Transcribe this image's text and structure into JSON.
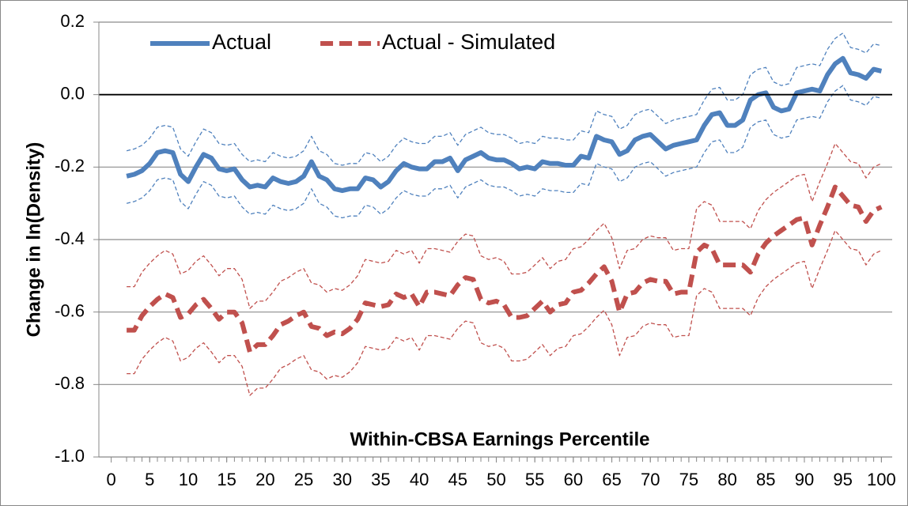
{
  "chart_data": {
    "type": "line",
    "y_label": "Change in ln(Density)",
    "x_label": "Within-CBSA Earnings Percentile",
    "xlim": [
      -1.6,
      101.4
    ],
    "xticks": [
      0,
      5,
      10,
      15,
      20,
      25,
      30,
      35,
      40,
      45,
      50,
      55,
      60,
      65,
      70,
      75,
      80,
      85,
      90,
      95,
      100
    ],
    "ylim": [
      -1.0,
      0.2
    ],
    "yticks": [
      {
        "value": -1.0,
        "label": "-1.0"
      },
      -0.8,
      -0.6,
      -0.4,
      -0.2,
      {
        "value": 0.0,
        "label": "0.0"
      },
      0.2
    ],
    "grid": true,
    "zero_line": true,
    "legend": "upper left",
    "x": [
      2,
      3,
      4,
      5,
      6,
      7,
      8,
      9,
      10,
      11,
      12,
      13,
      14,
      15,
      16,
      17,
      18,
      19,
      20,
      21,
      22,
      23,
      24,
      25,
      26,
      27,
      28,
      29,
      30,
      31,
      32,
      33,
      34,
      35,
      36,
      37,
      38,
      39,
      40,
      41,
      42,
      43,
      44,
      45,
      46,
      47,
      48,
      49,
      50,
      51,
      52,
      53,
      54,
      55,
      56,
      57,
      58,
      59,
      60,
      61,
      62,
      63,
      64,
      65,
      66,
      67,
      68,
      69,
      70,
      71,
      72,
      73,
      74,
      75,
      76,
      77,
      78,
      79,
      80,
      81,
      82,
      83,
      84,
      85,
      86,
      87,
      88,
      89,
      90,
      91,
      92,
      93,
      94,
      95,
      96,
      97,
      98,
      99,
      100
    ],
    "series": [
      {
        "color": "#4f81bd",
        "dashed": true,
        "values": [
          -0.155,
          -0.15,
          -0.14,
          -0.12,
          -0.09,
          -0.085,
          -0.09,
          -0.15,
          -0.17,
          -0.13,
          -0.095,
          -0.105,
          -0.135,
          -0.14,
          -0.135,
          -0.165,
          -0.185,
          -0.18,
          -0.185,
          -0.16,
          -0.17,
          -0.175,
          -0.17,
          -0.155,
          -0.115,
          -0.155,
          -0.165,
          -0.19,
          -0.195,
          -0.19,
          -0.19,
          -0.16,
          -0.165,
          -0.185,
          -0.17,
          -0.14,
          -0.12,
          -0.13,
          -0.135,
          -0.135,
          -0.115,
          -0.115,
          -0.105,
          -0.14,
          -0.11,
          -0.1,
          -0.09,
          -0.105,
          -0.11,
          -0.11,
          -0.12,
          -0.135,
          -0.13,
          -0.135,
          -0.115,
          -0.12,
          -0.12,
          -0.125,
          -0.125,
          -0.1,
          -0.105,
          -0.045,
          -0.055,
          -0.06,
          -0.095,
          -0.085,
          -0.055,
          -0.045,
          -0.04,
          -0.06,
          -0.08,
          -0.07,
          -0.065,
          -0.06,
          -0.055,
          -0.015,
          0.015,
          0.02,
          -0.015,
          -0.015,
          0.0,
          0.055,
          0.07,
          0.075,
          0.035,
          0.025,
          0.03,
          0.075,
          0.08,
          0.085,
          0.08,
          0.125,
          0.155,
          0.17,
          0.13,
          0.125,
          0.115,
          0.14,
          0.135
        ]
      },
      {
        "color": "#4f81bd",
        "dashed": true,
        "values": [
          -0.3,
          -0.295,
          -0.285,
          -0.265,
          -0.235,
          -0.23,
          -0.235,
          -0.295,
          -0.315,
          -0.275,
          -0.24,
          -0.25,
          -0.28,
          -0.285,
          -0.28,
          -0.31,
          -0.33,
          -0.325,
          -0.33,
          -0.305,
          -0.315,
          -0.32,
          -0.315,
          -0.3,
          -0.26,
          -0.3,
          -0.31,
          -0.335,
          -0.34,
          -0.335,
          -0.335,
          -0.305,
          -0.31,
          -0.33,
          -0.315,
          -0.285,
          -0.265,
          -0.275,
          -0.28,
          -0.28,
          -0.26,
          -0.26,
          -0.25,
          -0.285,
          -0.255,
          -0.245,
          -0.235,
          -0.25,
          -0.255,
          -0.255,
          -0.265,
          -0.28,
          -0.275,
          -0.28,
          -0.26,
          -0.265,
          -0.265,
          -0.27,
          -0.27,
          -0.245,
          -0.25,
          -0.19,
          -0.2,
          -0.205,
          -0.24,
          -0.23,
          -0.2,
          -0.19,
          -0.185,
          -0.205,
          -0.225,
          -0.215,
          -0.21,
          -0.205,
          -0.2,
          -0.16,
          -0.13,
          -0.125,
          -0.16,
          -0.16,
          -0.145,
          -0.09,
          -0.075,
          -0.07,
          -0.11,
          -0.12,
          -0.115,
          -0.07,
          -0.065,
          -0.06,
          -0.065,
          -0.02,
          0.01,
          0.025,
          -0.015,
          -0.02,
          -0.03,
          -0.005,
          -0.01
        ]
      },
      {
        "color": "#c0504d",
        "dashed": true,
        "values": [
          -0.53,
          -0.53,
          -0.49,
          -0.465,
          -0.445,
          -0.43,
          -0.44,
          -0.495,
          -0.485,
          -0.46,
          -0.445,
          -0.47,
          -0.5,
          -0.48,
          -0.48,
          -0.51,
          -0.59,
          -0.57,
          -0.57,
          -0.545,
          -0.515,
          -0.505,
          -0.49,
          -0.48,
          -0.52,
          -0.525,
          -0.545,
          -0.535,
          -0.54,
          -0.525,
          -0.5,
          -0.455,
          -0.46,
          -0.465,
          -0.46,
          -0.43,
          -0.44,
          -0.43,
          -0.465,
          -0.425,
          -0.425,
          -0.43,
          -0.435,
          -0.405,
          -0.385,
          -0.39,
          -0.445,
          -0.455,
          -0.45,
          -0.46,
          -0.495,
          -0.495,
          -0.49,
          -0.47,
          -0.45,
          -0.48,
          -0.46,
          -0.455,
          -0.425,
          -0.42,
          -0.4,
          -0.375,
          -0.355,
          -0.395,
          -0.48,
          -0.43,
          -0.425,
          -0.4,
          -0.39,
          -0.395,
          -0.395,
          -0.43,
          -0.425,
          -0.425,
          -0.315,
          -0.295,
          -0.305,
          -0.35,
          -0.35,
          -0.35,
          -0.35,
          -0.37,
          -0.32,
          -0.29,
          -0.27,
          -0.255,
          -0.24,
          -0.225,
          -0.22,
          -0.295,
          -0.24,
          -0.19,
          -0.135,
          -0.16,
          -0.185,
          -0.19,
          -0.23,
          -0.2,
          -0.19
        ]
      },
      {
        "color": "#c0504d",
        "dashed": true,
        "values": [
          -0.77,
          -0.77,
          -0.73,
          -0.705,
          -0.685,
          -0.67,
          -0.68,
          -0.735,
          -0.725,
          -0.7,
          -0.685,
          -0.71,
          -0.74,
          -0.72,
          -0.72,
          -0.75,
          -0.83,
          -0.81,
          -0.81,
          -0.785,
          -0.755,
          -0.745,
          -0.73,
          -0.72,
          -0.76,
          -0.765,
          -0.785,
          -0.775,
          -0.78,
          -0.765,
          -0.74,
          -0.695,
          -0.7,
          -0.705,
          -0.7,
          -0.67,
          -0.68,
          -0.67,
          -0.705,
          -0.665,
          -0.665,
          -0.67,
          -0.675,
          -0.645,
          -0.625,
          -0.63,
          -0.685,
          -0.695,
          -0.69,
          -0.7,
          -0.735,
          -0.735,
          -0.73,
          -0.71,
          -0.69,
          -0.72,
          -0.7,
          -0.695,
          -0.665,
          -0.66,
          -0.64,
          -0.615,
          -0.595,
          -0.635,
          -0.72,
          -0.67,
          -0.665,
          -0.64,
          -0.63,
          -0.635,
          -0.635,
          -0.67,
          -0.665,
          -0.665,
          -0.555,
          -0.535,
          -0.545,
          -0.59,
          -0.59,
          -0.59,
          -0.59,
          -0.61,
          -0.56,
          -0.53,
          -0.51,
          -0.495,
          -0.48,
          -0.465,
          -0.46,
          -0.535,
          -0.48,
          -0.43,
          -0.375,
          -0.4,
          -0.425,
          -0.43,
          -0.47,
          -0.44,
          -0.43
        ]
      },
      {
        "name": "Actual",
        "color": "#4f81bd",
        "dashed": false,
        "values": [
          -0.225,
          -0.22,
          -0.21,
          -0.19,
          -0.16,
          -0.155,
          -0.16,
          -0.22,
          -0.24,
          -0.2,
          -0.165,
          -0.175,
          -0.205,
          -0.21,
          -0.205,
          -0.235,
          -0.255,
          -0.25,
          -0.255,
          -0.23,
          -0.24,
          -0.245,
          -0.24,
          -0.225,
          -0.185,
          -0.225,
          -0.235,
          -0.26,
          -0.265,
          -0.26,
          -0.26,
          -0.23,
          -0.235,
          -0.255,
          -0.24,
          -0.21,
          -0.19,
          -0.2,
          -0.205,
          -0.205,
          -0.185,
          -0.185,
          -0.175,
          -0.21,
          -0.18,
          -0.17,
          -0.16,
          -0.175,
          -0.18,
          -0.18,
          -0.19,
          -0.205,
          -0.2,
          -0.205,
          -0.185,
          -0.19,
          -0.19,
          -0.195,
          -0.195,
          -0.17,
          -0.175,
          -0.115,
          -0.125,
          -0.13,
          -0.165,
          -0.155,
          -0.125,
          -0.115,
          -0.11,
          -0.13,
          -0.15,
          -0.14,
          -0.135,
          -0.13,
          -0.125,
          -0.085,
          -0.055,
          -0.05,
          -0.085,
          -0.085,
          -0.07,
          -0.015,
          0.0,
          0.005,
          -0.035,
          -0.045,
          -0.04,
          0.005,
          0.01,
          0.015,
          0.01,
          0.055,
          0.085,
          0.1,
          0.06,
          0.055,
          0.045,
          0.07,
          0.065
        ]
      },
      {
        "name": "Actual - Simulated",
        "color": "#c0504d",
        "dashed": true,
        "values": [
          -0.65,
          -0.65,
          -0.61,
          -0.585,
          -0.565,
          -0.55,
          -0.56,
          -0.615,
          -0.605,
          -0.58,
          -0.565,
          -0.59,
          -0.62,
          -0.6,
          -0.6,
          -0.63,
          -0.71,
          -0.69,
          -0.69,
          -0.665,
          -0.635,
          -0.625,
          -0.61,
          -0.6,
          -0.64,
          -0.645,
          -0.665,
          -0.655,
          -0.66,
          -0.645,
          -0.62,
          -0.575,
          -0.58,
          -0.585,
          -0.58,
          -0.55,
          -0.56,
          -0.55,
          -0.585,
          -0.545,
          -0.545,
          -0.55,
          -0.555,
          -0.525,
          -0.505,
          -0.51,
          -0.565,
          -0.575,
          -0.57,
          -0.58,
          -0.615,
          -0.615,
          -0.61,
          -0.59,
          -0.57,
          -0.6,
          -0.58,
          -0.575,
          -0.545,
          -0.54,
          -0.52,
          -0.495,
          -0.475,
          -0.515,
          -0.6,
          -0.55,
          -0.545,
          -0.52,
          -0.51,
          -0.515,
          -0.515,
          -0.55,
          -0.545,
          -0.545,
          -0.435,
          -0.415,
          -0.425,
          -0.47,
          -0.47,
          -0.47,
          -0.47,
          -0.49,
          -0.44,
          -0.41,
          -0.39,
          -0.375,
          -0.36,
          -0.345,
          -0.34,
          -0.415,
          -0.36,
          -0.31,
          -0.255,
          -0.28,
          -0.305,
          -0.31,
          -0.35,
          -0.32,
          -0.31
        ]
      }
    ]
  }
}
